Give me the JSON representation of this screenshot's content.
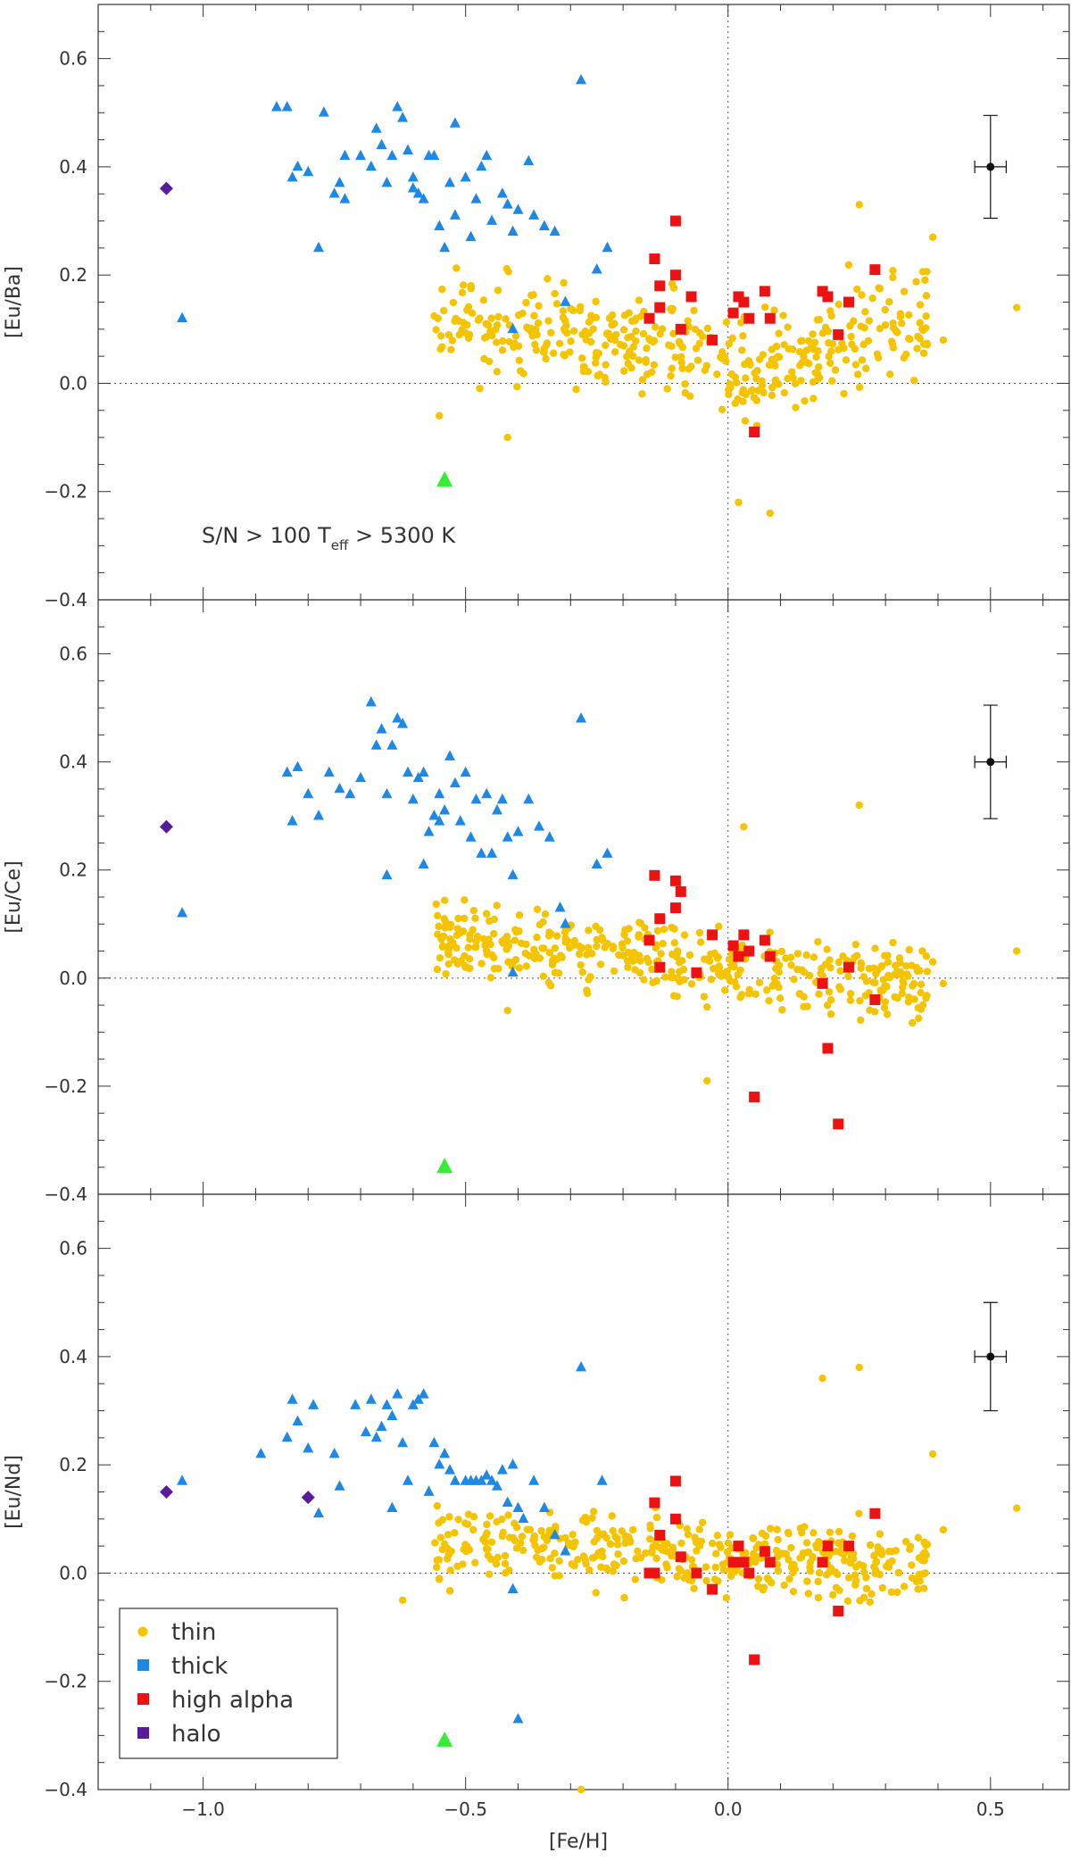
{
  "chart_data": {
    "type": "scatter",
    "xlabel": "[Fe/H]",
    "xlim": [
      -1.2,
      0.65
    ],
    "xticks": [
      "−1.0",
      "−0.5",
      "0.0",
      "0.5"
    ],
    "grid": false,
    "legend_position": "bottom-left",
    "annotation": {
      "text1": "S/N > 100",
      "text2_main": "T",
      "text2_sub": "eff",
      "text2_rest": " > 5300 K"
    },
    "colors": {
      "thin": "#f5c400",
      "thick": "#1e88e5",
      "high_alpha": "#ee1111",
      "halo": "#5a1a9c",
      "special": "#33ee33"
    },
    "legend": [
      {
        "key": "thin",
        "label": "thin",
        "marker": "circle"
      },
      {
        "key": "thick",
        "label": "thick",
        "marker": "square"
      },
      {
        "key": "high_alpha",
        "label": "high alpha",
        "marker": "square"
      },
      {
        "key": "halo",
        "label": "halo",
        "marker": "square"
      }
    ],
    "panels": [
      {
        "ylabel": "[Eu/Ba]",
        "ylim": [
          -0.4,
          0.7
        ],
        "yticks": [
          "−0.4",
          "−0.2",
          "0.0",
          "0.2",
          "0.4",
          "0.6"
        ],
        "error_bar": {
          "x": 0.5,
          "y": 0.4,
          "xerr": 0.03,
          "yerr": 0.095
        },
        "series": {
          "thick": [
            [
              -0.84,
              0.51
            ],
            [
              -0.83,
              0.38
            ],
            [
              -0.82,
              0.4
            ],
            [
              -0.8,
              0.39
            ],
            [
              -0.78,
              0.25
            ],
            [
              -0.77,
              0.5
            ],
            [
              -0.74,
              0.37
            ],
            [
              -0.73,
              0.34
            ],
            [
              -0.7,
              0.42
            ],
            [
              -0.68,
              0.4
            ],
            [
              -0.67,
              0.47
            ],
            [
              -0.66,
              0.44
            ],
            [
              -0.65,
              0.37
            ],
            [
              -0.64,
              0.42
            ],
            [
              -0.63,
              0.51
            ],
            [
              -0.62,
              0.49
            ],
            [
              -0.61,
              0.43
            ],
            [
              -0.6,
              0.38
            ],
            [
              -0.59,
              0.35
            ],
            [
              -0.58,
              0.34
            ],
            [
              -0.57,
              0.42
            ],
            [
              -0.56,
              0.42
            ],
            [
              -0.55,
              0.29
            ],
            [
              -0.54,
              0.25
            ],
            [
              -0.53,
              0.37
            ],
            [
              -0.52,
              0.31
            ],
            [
              -0.5,
              0.38
            ],
            [
              -0.49,
              0.27
            ],
            [
              -0.48,
              0.34
            ],
            [
              -0.46,
              0.42
            ],
            [
              -0.45,
              0.3
            ],
            [
              -0.43,
              0.35
            ],
            [
              -0.42,
              0.33
            ],
            [
              -0.41,
              0.28
            ],
            [
              -0.4,
              0.32
            ],
            [
              -0.38,
              0.41
            ],
            [
              -0.37,
              0.31
            ],
            [
              -0.35,
              0.29
            ],
            [
              -0.33,
              0.28
            ],
            [
              -0.31,
              0.15
            ],
            [
              -0.28,
              0.56
            ],
            [
              -0.25,
              0.21
            ],
            [
              -0.23,
              0.25
            ],
            [
              -0.41,
              0.1
            ],
            [
              -1.04,
              0.12
            ],
            [
              -0.86,
              0.51
            ],
            [
              -0.73,
              0.42
            ],
            [
              -0.75,
              0.35
            ],
            [
              -0.6,
              0.36
            ],
            [
              -0.52,
              0.48
            ],
            [
              -0.47,
              0.4
            ]
          ],
          "high_alpha": [
            [
              -0.14,
              0.23
            ],
            [
              -0.13,
              0.18
            ],
            [
              -0.15,
              0.12
            ],
            [
              -0.13,
              0.14
            ],
            [
              -0.1,
              0.3
            ],
            [
              -0.1,
              0.2
            ],
            [
              -0.09,
              0.1
            ],
            [
              -0.07,
              0.16
            ],
            [
              -0.03,
              0.08
            ],
            [
              0.01,
              0.13
            ],
            [
              0.02,
              0.16
            ],
            [
              0.03,
              0.15
            ],
            [
              0.04,
              0.12
            ],
            [
              0.05,
              -0.09
            ],
            [
              0.07,
              0.17
            ],
            [
              0.08,
              0.12
            ],
            [
              0.18,
              0.17
            ],
            [
              0.19,
              0.16
            ],
            [
              0.21,
              0.09
            ],
            [
              0.23,
              0.15
            ],
            [
              0.28,
              0.21
            ]
          ],
          "halo": [
            [
              -1.07,
              0.36
            ]
          ],
          "special": [
            [
              -0.54,
              -0.18
            ]
          ]
        }
      },
      {
        "ylabel": "[Eu/Ce]",
        "ylim": [
          -0.4,
          0.7
        ],
        "yticks": [
          "−0.4",
          "−0.2",
          "0.0",
          "0.2",
          "0.4",
          "0.6"
        ],
        "error_bar": {
          "x": 0.5,
          "y": 0.4,
          "xerr": 0.03,
          "yerr": 0.105
        },
        "series": {
          "thick": [
            [
              -0.84,
              0.38
            ],
            [
              -0.83,
              0.29
            ],
            [
              -0.82,
              0.39
            ],
            [
              -0.8,
              0.34
            ],
            [
              -0.78,
              0.3
            ],
            [
              -0.76,
              0.38
            ],
            [
              -0.74,
              0.35
            ],
            [
              -0.72,
              0.34
            ],
            [
              -0.7,
              0.37
            ],
            [
              -0.68,
              0.51
            ],
            [
              -0.67,
              0.43
            ],
            [
              -0.66,
              0.46
            ],
            [
              -0.65,
              0.34
            ],
            [
              -0.64,
              0.43
            ],
            [
              -0.63,
              0.48
            ],
            [
              -0.62,
              0.47
            ],
            [
              -0.61,
              0.38
            ],
            [
              -0.6,
              0.33
            ],
            [
              -0.59,
              0.37
            ],
            [
              -0.58,
              0.38
            ],
            [
              -0.57,
              0.27
            ],
            [
              -0.56,
              0.3
            ],
            [
              -0.55,
              0.34
            ],
            [
              -0.54,
              0.31
            ],
            [
              -0.53,
              0.41
            ],
            [
              -0.52,
              0.36
            ],
            [
              -0.51,
              0.29
            ],
            [
              -0.5,
              0.38
            ],
            [
              -0.49,
              0.26
            ],
            [
              -0.48,
              0.33
            ],
            [
              -0.46,
              0.34
            ],
            [
              -0.45,
              0.23
            ],
            [
              -0.44,
              0.31
            ],
            [
              -0.43,
              0.33
            ],
            [
              -0.41,
              0.19
            ],
            [
              -0.4,
              0.27
            ],
            [
              -0.38,
              0.33
            ],
            [
              -0.36,
              0.28
            ],
            [
              -0.34,
              0.26
            ],
            [
              -0.32,
              0.13
            ],
            [
              -0.31,
              0.1
            ],
            [
              -0.28,
              0.48
            ],
            [
              -0.25,
              0.21
            ],
            [
              -0.23,
              0.23
            ],
            [
              -0.41,
              0.01
            ],
            [
              -1.04,
              0.12
            ],
            [
              -0.65,
              0.19
            ],
            [
              -0.58,
              0.21
            ],
            [
              -0.55,
              0.29
            ],
            [
              -0.47,
              0.23
            ],
            [
              -0.42,
              0.26
            ]
          ],
          "high_alpha": [
            [
              -0.15,
              0.07
            ],
            [
              -0.14,
              0.19
            ],
            [
              -0.13,
              0.11
            ],
            [
              -0.13,
              0.02
            ],
            [
              -0.1,
              0.18
            ],
            [
              -0.1,
              0.13
            ],
            [
              -0.09,
              0.16
            ],
            [
              -0.06,
              0.01
            ],
            [
              -0.03,
              0.08
            ],
            [
              0.01,
              0.06
            ],
            [
              0.02,
              0.04
            ],
            [
              0.03,
              0.08
            ],
            [
              0.04,
              0.05
            ],
            [
              0.05,
              -0.22
            ],
            [
              0.07,
              0.07
            ],
            [
              0.08,
              0.04
            ],
            [
              0.18,
              -0.01
            ],
            [
              0.19,
              -0.13
            ],
            [
              0.21,
              -0.27
            ],
            [
              0.23,
              0.02
            ],
            [
              0.28,
              -0.04
            ]
          ],
          "halo": [
            [
              -1.07,
              0.28
            ]
          ],
          "special": [
            [
              -0.54,
              -0.35
            ]
          ]
        }
      },
      {
        "ylabel": "[Eu/Nd]",
        "ylim": [
          -0.4,
          0.7
        ],
        "yticks": [
          "−0.4",
          "−0.2",
          "0.0",
          "0.2",
          "0.4",
          "0.6"
        ],
        "error_bar": {
          "x": 0.5,
          "y": 0.4,
          "xerr": 0.03,
          "yerr": 0.1
        },
        "series": {
          "thick": [
            [
              -0.89,
              0.22
            ],
            [
              -0.84,
              0.25
            ],
            [
              -0.83,
              0.32
            ],
            [
              -0.82,
              0.28
            ],
            [
              -0.8,
              0.23
            ],
            [
              -0.79,
              0.31
            ],
            [
              -0.78,
              0.11
            ],
            [
              -0.75,
              0.22
            ],
            [
              -0.74,
              0.16
            ],
            [
              -0.71,
              0.31
            ],
            [
              -0.69,
              0.26
            ],
            [
              -0.68,
              0.32
            ],
            [
              -0.67,
              0.25
            ],
            [
              -0.66,
              0.27
            ],
            [
              -0.65,
              0.31
            ],
            [
              -0.64,
              0.29
            ],
            [
              -0.63,
              0.33
            ],
            [
              -0.62,
              0.24
            ],
            [
              -0.61,
              0.17
            ],
            [
              -0.6,
              0.31
            ],
            [
              -0.59,
              0.32
            ],
            [
              -0.58,
              0.33
            ],
            [
              -0.57,
              0.15
            ],
            [
              -0.56,
              0.24
            ],
            [
              -0.55,
              0.2
            ],
            [
              -0.54,
              0.22
            ],
            [
              -0.53,
              0.19
            ],
            [
              -0.52,
              0.17
            ],
            [
              -0.5,
              0.17
            ],
            [
              -0.49,
              0.17
            ],
            [
              -0.48,
              0.17
            ],
            [
              -0.47,
              0.17
            ],
            [
              -0.46,
              0.18
            ],
            [
              -0.45,
              0.17
            ],
            [
              -0.44,
              0.16
            ],
            [
              -0.43,
              0.19
            ],
            [
              -0.42,
              0.13
            ],
            [
              -0.41,
              0.2
            ],
            [
              -0.4,
              0.12
            ],
            [
              -0.39,
              0.1
            ],
            [
              -0.37,
              0.17
            ],
            [
              -0.35,
              0.12
            ],
            [
              -0.33,
              0.07
            ],
            [
              -0.31,
              0.04
            ],
            [
              -0.28,
              0.38
            ],
            [
              -0.24,
              0.17
            ],
            [
              -0.4,
              -0.27
            ],
            [
              -0.41,
              -0.03
            ],
            [
              -1.04,
              0.17
            ],
            [
              -0.64,
              0.12
            ]
          ],
          "high_alpha": [
            [
              -0.14,
              0.13
            ],
            [
              -0.13,
              0.07
            ],
            [
              -0.15,
              0.0
            ],
            [
              -0.14,
              0.0
            ],
            [
              -0.1,
              0.17
            ],
            [
              -0.1,
              0.1
            ],
            [
              -0.09,
              0.03
            ],
            [
              -0.06,
              0.0
            ],
            [
              -0.03,
              -0.03
            ],
            [
              0.01,
              0.02
            ],
            [
              0.02,
              0.05
            ],
            [
              0.03,
              0.02
            ],
            [
              0.04,
              0.0
            ],
            [
              0.05,
              -0.16
            ],
            [
              0.07,
              0.04
            ],
            [
              0.08,
              0.02
            ],
            [
              0.18,
              0.02
            ],
            [
              0.19,
              0.05
            ],
            [
              0.21,
              -0.07
            ],
            [
              0.23,
              0.05
            ],
            [
              0.28,
              0.11
            ]
          ],
          "halo": [
            [
              -1.07,
              0.15
            ],
            [
              -0.8,
              0.14
            ]
          ],
          "special": [
            [
              -0.54,
              -0.31
            ]
          ]
        }
      }
    ]
  }
}
